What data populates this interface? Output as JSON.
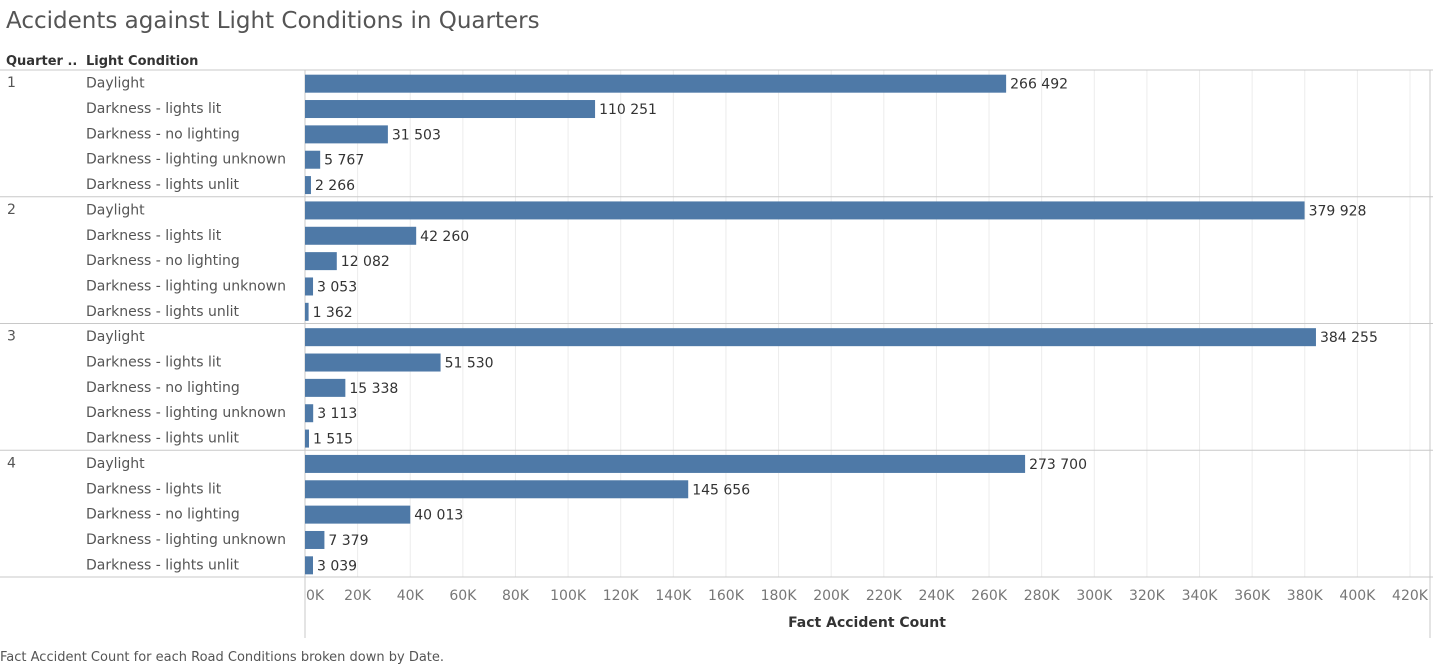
{
  "title": "Accidents against Light Conditions in Quarters",
  "caption": "Fact Accident Count for each Road Conditions broken down by Date.",
  "headers": {
    "quarter": "Quarter ..",
    "light_condition": "Light Condition"
  },
  "colors": {
    "bar": "#4e79a7",
    "grid": "#ececec",
    "divider": "#c8c8c8"
  },
  "chart_data": {
    "type": "bar",
    "orientation": "horizontal",
    "title": "Accidents against Light Conditions in Quarters",
    "xlabel": "Fact Accident Count",
    "ylabel": "",
    "xlim": [
      0,
      420000
    ],
    "x_ticks": [
      "0K",
      "20K",
      "40K",
      "60K",
      "80K",
      "100K",
      "120K",
      "140K",
      "160K",
      "180K",
      "200K",
      "220K",
      "240K",
      "260K",
      "280K",
      "300K",
      "320K",
      "340K",
      "360K",
      "380K",
      "400K",
      "420K"
    ],
    "grid": true,
    "groups": [
      {
        "quarter": "1",
        "rows": [
          {
            "label": "Daylight",
            "value": 266492,
            "value_label": "266 492"
          },
          {
            "label": "Darkness - lights lit",
            "value": 110251,
            "value_label": "110 251"
          },
          {
            "label": "Darkness - no lighting",
            "value": 31503,
            "value_label": "31 503"
          },
          {
            "label": "Darkness - lighting unknown",
            "value": 5767,
            "value_label": "5 767"
          },
          {
            "label": "Darkness - lights unlit",
            "value": 2266,
            "value_label": "2 266"
          }
        ]
      },
      {
        "quarter": "2",
        "rows": [
          {
            "label": "Daylight",
            "value": 379928,
            "value_label": "379 928"
          },
          {
            "label": "Darkness - lights lit",
            "value": 42260,
            "value_label": "42 260"
          },
          {
            "label": "Darkness - no lighting",
            "value": 12082,
            "value_label": "12 082"
          },
          {
            "label": "Darkness - lighting unknown",
            "value": 3053,
            "value_label": "3 053"
          },
          {
            "label": "Darkness - lights unlit",
            "value": 1362,
            "value_label": "1 362"
          }
        ]
      },
      {
        "quarter": "3",
        "rows": [
          {
            "label": "Daylight",
            "value": 384255,
            "value_label": "384 255"
          },
          {
            "label": "Darkness - lights lit",
            "value": 51530,
            "value_label": "51 530"
          },
          {
            "label": "Darkness - no lighting",
            "value": 15338,
            "value_label": "15 338"
          },
          {
            "label": "Darkness - lighting unknown",
            "value": 3113,
            "value_label": "3 113"
          },
          {
            "label": "Darkness - lights unlit",
            "value": 1515,
            "value_label": "1 515"
          }
        ]
      },
      {
        "quarter": "4",
        "rows": [
          {
            "label": "Daylight",
            "value": 273700,
            "value_label": "273 700"
          },
          {
            "label": "Darkness - lights lit",
            "value": 145656,
            "value_label": "145 656"
          },
          {
            "label": "Darkness - no lighting",
            "value": 40013,
            "value_label": "40 013"
          },
          {
            "label": "Darkness - lighting unknown",
            "value": 7379,
            "value_label": "7 379"
          },
          {
            "label": "Darkness - lights unlit",
            "value": 3039,
            "value_label": "3 039"
          }
        ]
      }
    ]
  }
}
